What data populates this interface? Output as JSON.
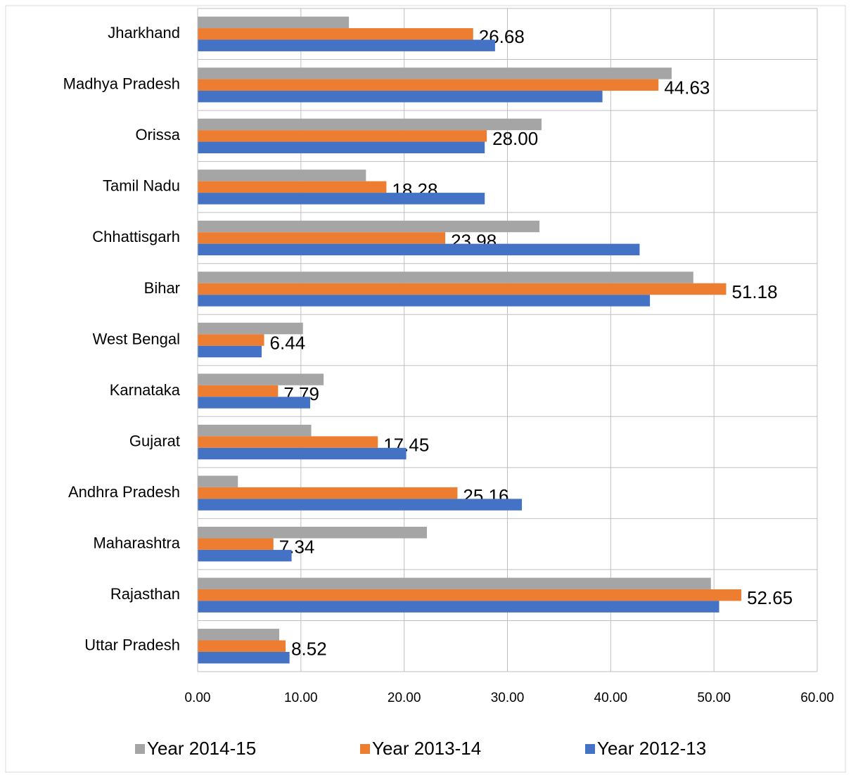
{
  "chart_data": {
    "type": "hbar",
    "categories": [
      "Jharkhand",
      "Madhya Pradesh",
      "Orissa",
      "Tamil Nadu",
      "Chhattisgarh",
      "Bihar",
      "West Bengal",
      "Karnataka",
      "Gujarat",
      "Andhra Pradesh",
      "Maharashtra",
      "Rajasthan",
      "Uttar Pradesh"
    ],
    "series": [
      {
        "name": "Year 2014-15",
        "color": "#a5a5a5",
        "values": [
          14.65,
          45.9,
          33.3,
          16.3,
          33.1,
          48.0,
          10.2,
          12.2,
          11.0,
          3.9,
          22.2,
          49.7,
          7.9
        ]
      },
      {
        "name": "Year 2013-14",
        "color": "#ed7d31",
        "values": [
          26.68,
          44.63,
          28.0,
          18.28,
          23.98,
          51.18,
          6.44,
          7.79,
          17.45,
          25.16,
          7.34,
          52.65,
          8.52
        ],
        "value_labels": [
          "26.68",
          "44.63",
          "28.00",
          "18.28",
          "23.98",
          "51.18",
          "6.44",
          "7.79",
          "17.45",
          "25.16",
          "7.34",
          "52.65",
          "8.52"
        ]
      },
      {
        "name": "Year 2012-13",
        "color": "#4472c4",
        "values": [
          28.8,
          39.2,
          27.8,
          27.8,
          42.8,
          43.8,
          6.2,
          10.9,
          20.2,
          31.4,
          9.1,
          50.5,
          8.9
        ]
      }
    ],
    "xlim": [
      0,
      60
    ],
    "xticks": [
      {
        "value": 0,
        "label": "0.00"
      },
      {
        "value": 10,
        "label": "10.00"
      },
      {
        "value": 20,
        "label": "20.00"
      },
      {
        "value": 30,
        "label": "30.00"
      },
      {
        "value": 40,
        "label": "40.00"
      },
      {
        "value": 50,
        "label": "50.00"
      },
      {
        "value": 60,
        "label": "60.00"
      }
    ],
    "grid": true,
    "legend": "bottom"
  }
}
